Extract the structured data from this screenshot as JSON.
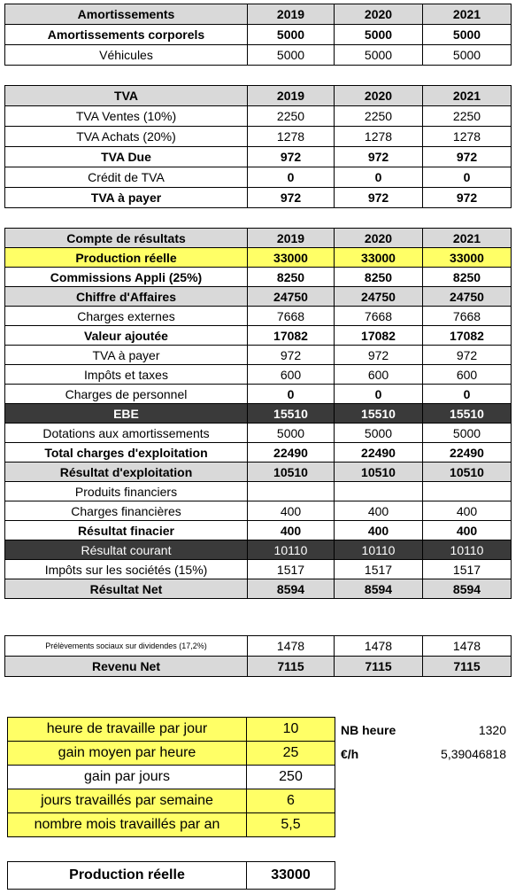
{
  "amortissements": {
    "header": [
      "Amortissements",
      "2019",
      "2020",
      "2021"
    ],
    "rows": [
      {
        "label": "Amortissements corporels",
        "values": [
          "5000",
          "5000",
          "5000"
        ],
        "bold": true
      },
      {
        "label": "Véhicules",
        "values": [
          "5000",
          "5000",
          "5000"
        ],
        "bold": false
      }
    ]
  },
  "tva": {
    "header": [
      "TVA",
      "2019",
      "2020",
      "2021"
    ],
    "rows": [
      {
        "label": "TVA Ventes (10%)",
        "values": [
          "2250",
          "2250",
          "2250"
        ]
      },
      {
        "label": "TVA Achats (20%)",
        "values": [
          "1278",
          "1278",
          "1278"
        ]
      },
      {
        "label": "TVA Due",
        "values": [
          "972",
          "972",
          "972"
        ]
      },
      {
        "label": "Crédit de TVA",
        "values": [
          "0",
          "0",
          "0"
        ]
      },
      {
        "label": "TVA à payer",
        "values": [
          "972",
          "972",
          "972"
        ]
      }
    ]
  },
  "resultats": {
    "header": [
      "Compte de résultats",
      "2019",
      "2020",
      "2021"
    ],
    "rows": [
      {
        "label": "Production réelle",
        "values": [
          "33000",
          "33000",
          "33000"
        ]
      },
      {
        "label": "Commissions Appli (25%)",
        "values": [
          "8250",
          "8250",
          "8250"
        ]
      },
      {
        "label": "Chiffre d'Affaires",
        "values": [
          "24750",
          "24750",
          "24750"
        ]
      },
      {
        "label": "Charges externes",
        "values": [
          "7668",
          "7668",
          "7668"
        ]
      },
      {
        "label": "Valeur ajoutée",
        "values": [
          "17082",
          "17082",
          "17082"
        ]
      },
      {
        "label": "TVA à payer",
        "values": [
          "972",
          "972",
          "972"
        ]
      },
      {
        "label": "Impôts et taxes",
        "values": [
          "600",
          "600",
          "600"
        ]
      },
      {
        "label": "Charges de personnel",
        "values": [
          "0",
          "0",
          "0"
        ]
      },
      {
        "label": "EBE",
        "values": [
          "15510",
          "15510",
          "15510"
        ]
      },
      {
        "label": "Dotations aux amortissements",
        "values": [
          "5000",
          "5000",
          "5000"
        ]
      },
      {
        "label": "Total charges d'exploitation",
        "values": [
          "22490",
          "22490",
          "22490"
        ]
      },
      {
        "label": "Résultat d'exploitation",
        "values": [
          "10510",
          "10510",
          "10510"
        ]
      },
      {
        "label": "Produits financiers",
        "values": [
          "",
          "",
          ""
        ]
      },
      {
        "label": "Charges financières",
        "values": [
          "400",
          "400",
          "400"
        ]
      },
      {
        "label": "Résultat finacier",
        "values": [
          "400",
          "400",
          "400"
        ]
      },
      {
        "label": "Résultat courant",
        "values": [
          "10110",
          "10110",
          "10110"
        ]
      },
      {
        "label": "Impôts sur les sociétés (15%)",
        "values": [
          "1517",
          "1517",
          "1517"
        ]
      },
      {
        "label": "Résultat Net",
        "values": [
          "8594",
          "8594",
          "8594"
        ]
      }
    ]
  },
  "revenu": {
    "rows": [
      {
        "label": "Prélèvements sociaux sur dividendes (17,2%)",
        "values": [
          "1478",
          "1478",
          "1478"
        ]
      },
      {
        "label": "Revenu Net",
        "values": [
          "7115",
          "7115",
          "7115"
        ]
      }
    ]
  },
  "parametres": {
    "rows": [
      {
        "label": "heure de travaille par jour",
        "value": "10"
      },
      {
        "label": "gain moyen par heure",
        "value": "25"
      },
      {
        "label": "gain par jours",
        "value": "250"
      },
      {
        "label": "jours travaillés par semaine",
        "value": "6"
      },
      {
        "label": "nombre mois travaillés par an",
        "value": "5,5"
      }
    ],
    "nb_heure_label": "NB heure",
    "nb_heure_value": "1320",
    "euro_h_label": "€/h",
    "euro_h_value": "5,39046818"
  },
  "production": {
    "label": "Production réelle",
    "value": "33000"
  },
  "colors": {
    "highlight_yellow": "#ffff66",
    "header_gray": "#d9d9d9",
    "dark_row": "#3a3a3a"
  }
}
